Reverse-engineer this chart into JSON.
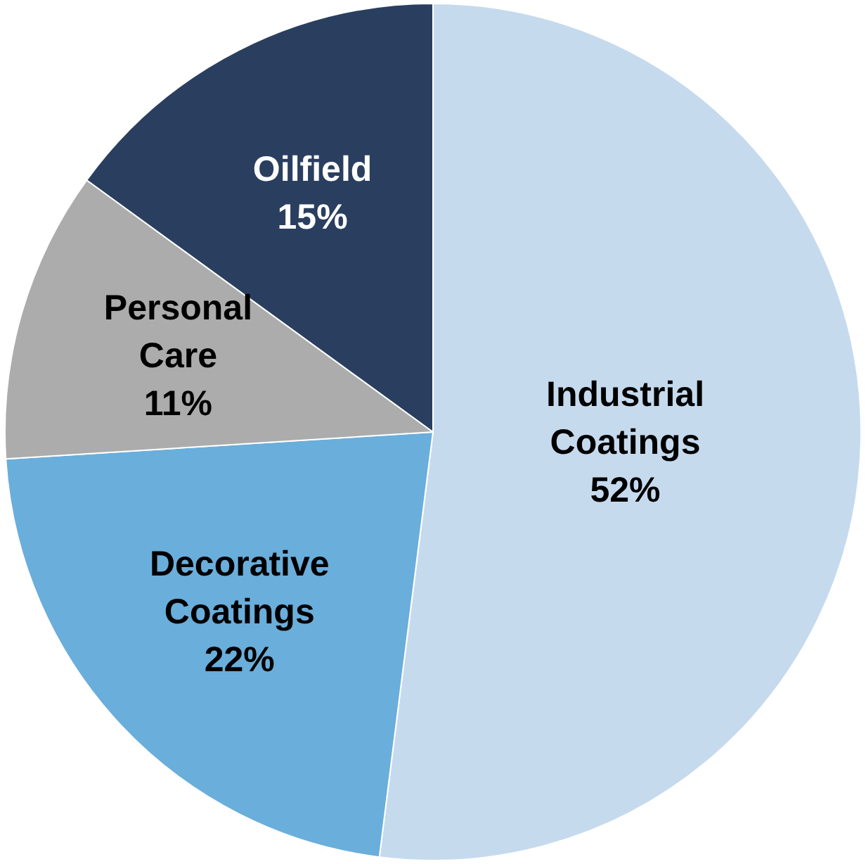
{
  "chart_data": {
    "type": "pie",
    "categories": [
      "Industrial Coatings",
      "Decorative Coatings",
      "Personal Care",
      "Oilfield"
    ],
    "values": [
      52,
      22,
      11,
      15
    ],
    "value_labels": [
      "52%",
      "22%",
      "11%",
      "15%"
    ],
    "colors": [
      "#c6daee",
      "#6aaedb",
      "#acacac",
      "#2a3f5f"
    ],
    "legend": false
  }
}
